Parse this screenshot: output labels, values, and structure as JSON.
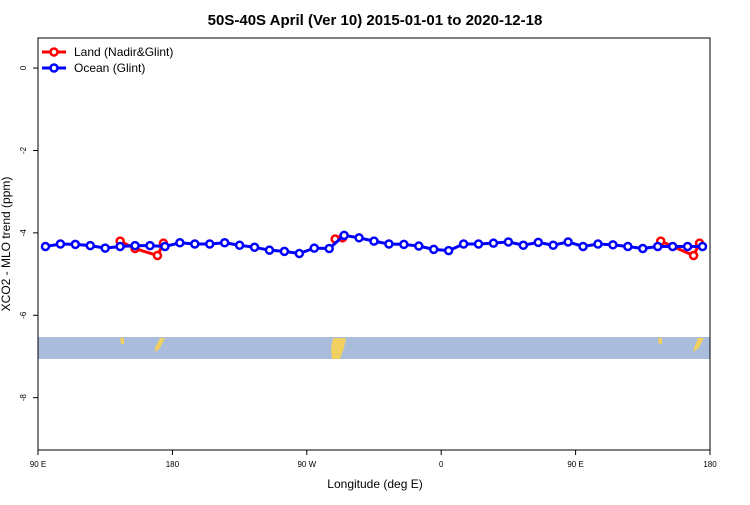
{
  "chart_data": {
    "type": "line",
    "title": "50S-40S April (Ver 10)   2015-01-01 to 2020-12-18",
    "x_label": "Longitude (deg E)",
    "y_label": "XCO2 - MLO trend (ppm)",
    "xlim": [
      90,
      540
    ],
    "ylim": [
      -9.27,
      0.73
    ],
    "xticks": [
      {
        "value": 90,
        "label": "90 E"
      },
      {
        "value": 180,
        "label": "180"
      },
      {
        "value": 270,
        "label": "90 W"
      },
      {
        "value": 360,
        "label": "0"
      },
      {
        "value": 450,
        "label": "90 E"
      },
      {
        "value": 540,
        "label": "180"
      }
    ],
    "yticks": [
      0,
      -2,
      -4,
      -6,
      -8
    ],
    "legend": "top-left",
    "series": [
      {
        "name": "Land (Nadir&Glint)",
        "color": "#ff0000",
        "x": [
          145,
          155,
          170,
          174,
          230,
          289,
          294,
          400,
          507,
          529,
          533
        ],
        "values": [
          -4.2,
          -4.38,
          -4.55,
          -4.25,
          null,
          -4.15,
          -4.12,
          null,
          -4.2,
          -4.55,
          -4.25
        ]
      },
      {
        "name": "Ocean (Glint)",
        "color": "#0000ff",
        "x": [
          95,
          105,
          115,
          125,
          135,
          145,
          155,
          165,
          175,
          185,
          195,
          205,
          215,
          225,
          235,
          245,
          255,
          265,
          275,
          285,
          295,
          305,
          315,
          325,
          335,
          345,
          355,
          365,
          375,
          385,
          395,
          405,
          415,
          425,
          435,
          445,
          455,
          465,
          475,
          485,
          495,
          505,
          515,
          525,
          535
        ],
        "values": [
          -4.33,
          -4.27,
          -4.28,
          -4.31,
          -4.37,
          -4.33,
          -4.31,
          -4.31,
          -4.33,
          -4.24,
          -4.27,
          -4.27,
          -4.24,
          -4.3,
          -4.35,
          -4.42,
          -4.45,
          -4.5,
          -4.37,
          -4.38,
          -4.06,
          -4.12,
          -4.2,
          -4.27,
          -4.28,
          -4.32,
          -4.4,
          -4.43,
          -4.27,
          -4.27,
          -4.25,
          -4.22,
          -4.3,
          -4.23,
          -4.3,
          -4.22,
          -4.33,
          -4.27,
          -4.29,
          -4.33,
          -4.38,
          -4.33,
          -4.33,
          -4.33,
          -4.33
        ]
      }
    ]
  }
}
